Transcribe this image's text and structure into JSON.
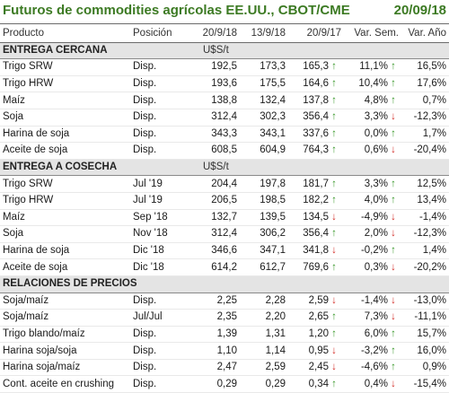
{
  "header": {
    "title": "Futuros de commodities agrícolas EE.UU., CBOT/CME",
    "date": "20/09/18"
  },
  "columns": [
    "Producto",
    "Posición",
    "20/9/18",
    "13/9/18",
    "20/9/17",
    "Var. Sem.",
    "Var. Año"
  ],
  "colors": {
    "title": "#3c7a23",
    "up": "#3d9a2f",
    "down": "#d4312c",
    "section_bg": "#e4e4e4"
  },
  "sections": [
    {
      "label": "ENTREGA CERCANA",
      "unit": "U$S/t",
      "rows": [
        {
          "product": "Trigo SRW",
          "position": "Disp.",
          "v1": "192,5",
          "v2": "173,3",
          "v3": "165,3",
          "dir1": "up",
          "varSem": "11,1%",
          "dir2": "up",
          "varAno": "16,5%"
        },
        {
          "product": "Trigo HRW",
          "position": "Disp.",
          "v1": "193,6",
          "v2": "175,5",
          "v3": "164,6",
          "dir1": "up",
          "varSem": "10,4%",
          "dir2": "up",
          "varAno": "17,6%"
        },
        {
          "product": "Maíz",
          "position": "Disp.",
          "v1": "138,8",
          "v2": "132,4",
          "v3": "137,8",
          "dir1": "up",
          "varSem": "4,8%",
          "dir2": "up",
          "varAno": "0,7%"
        },
        {
          "product": "Soja",
          "position": "Disp.",
          "v1": "312,4",
          "v2": "302,3",
          "v3": "356,4",
          "dir1": "up",
          "varSem": "3,3%",
          "dir2": "down",
          "varAno": "-12,3%"
        },
        {
          "product": "Harina de soja",
          "position": "Disp.",
          "v1": "343,3",
          "v2": "343,1",
          "v3": "337,6",
          "dir1": "up",
          "varSem": "0,0%",
          "dir2": "up",
          "varAno": "1,7%"
        },
        {
          "product": "Aceite de soja",
          "position": "Disp.",
          "v1": "608,5",
          "v2": "604,9",
          "v3": "764,3",
          "dir1": "up",
          "varSem": "0,6%",
          "dir2": "down",
          "varAno": "-20,4%"
        }
      ]
    },
    {
      "label": "ENTREGA A COSECHA",
      "unit": "U$S/t",
      "rows": [
        {
          "product": "Trigo SRW",
          "position": "Jul '19",
          "v1": "204,4",
          "v2": "197,8",
          "v3": "181,7",
          "dir1": "up",
          "varSem": "3,3%",
          "dir2": "up",
          "varAno": "12,5%"
        },
        {
          "product": "Trigo HRW",
          "position": "Jul '19",
          "v1": "206,5",
          "v2": "198,5",
          "v3": "182,2",
          "dir1": "up",
          "varSem": "4,0%",
          "dir2": "up",
          "varAno": "13,4%"
        },
        {
          "product": "Maíz",
          "position": "Sep '18",
          "v1": "132,7",
          "v2": "139,5",
          "v3": "134,5",
          "dir1": "down",
          "varSem": "-4,9%",
          "dir2": "down",
          "varAno": "-1,4%"
        },
        {
          "product": "Soja",
          "position": "Nov '18",
          "v1": "312,4",
          "v2": "306,2",
          "v3": "356,4",
          "dir1": "up",
          "varSem": "2,0%",
          "dir2": "down",
          "varAno": "-12,3%"
        },
        {
          "product": "Harina de soja",
          "position": "Dic '18",
          "v1": "346,6",
          "v2": "347,1",
          "v3": "341,8",
          "dir1": "down",
          "varSem": "-0,2%",
          "dir2": "up",
          "varAno": "1,4%"
        },
        {
          "product": "Aceite de soja",
          "position": "Dic '18",
          "v1": "614,2",
          "v2": "612,7",
          "v3": "769,6",
          "dir1": "up",
          "varSem": "0,3%",
          "dir2": "down",
          "varAno": "-20,2%"
        }
      ]
    },
    {
      "label": "RELACIONES DE PRECIOS",
      "unit": "",
      "rows": [
        {
          "product": "Soja/maíz",
          "position": "Disp.",
          "v1": "2,25",
          "v2": "2,28",
          "v3": "2,59",
          "dir1": "down",
          "varSem": "-1,4%",
          "dir2": "down",
          "varAno": "-13,0%"
        },
        {
          "product": "Soja/maíz",
          "position": "Jul/Jul",
          "v1": "2,35",
          "v2": "2,20",
          "v3": "2,65",
          "dir1": "up",
          "varSem": "7,3%",
          "dir2": "down",
          "varAno": "-11,1%"
        },
        {
          "product": "Trigo blando/maíz",
          "position": "Disp.",
          "v1": "1,39",
          "v2": "1,31",
          "v3": "1,20",
          "dir1": "up",
          "varSem": "6,0%",
          "dir2": "up",
          "varAno": "15,7%"
        },
        {
          "product": "Harina soja/soja",
          "position": "Disp.",
          "v1": "1,10",
          "v2": "1,14",
          "v3": "0,95",
          "dir1": "down",
          "varSem": "-3,2%",
          "dir2": "up",
          "varAno": "16,0%"
        },
        {
          "product": "Harina soja/maíz",
          "position": "Disp.",
          "v1": "2,47",
          "v2": "2,59",
          "v3": "2,45",
          "dir1": "down",
          "varSem": "-4,6%",
          "dir2": "up",
          "varAno": "0,9%"
        },
        {
          "product": "Cont. aceite en crushing",
          "position": "Disp.",
          "v1": "0,29",
          "v2": "0,29",
          "v3": "0,34",
          "dir1": "up",
          "varSem": "0,4%",
          "dir2": "down",
          "varAno": "-15,4%"
        }
      ]
    }
  ]
}
